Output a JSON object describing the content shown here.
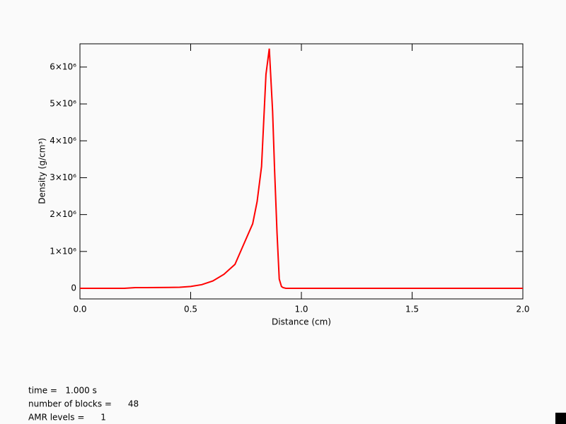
{
  "chart_data": {
    "type": "line",
    "x_label": "Distance (cm)",
    "y_label": "Density (g/cm³)",
    "x": [
      0,
      0.1,
      0.2,
      0.25,
      0.3,
      0.4,
      0.45,
      0.5,
      0.55,
      0.6,
      0.65,
      0.7,
      0.74,
      0.78,
      0.8,
      0.82,
      0.84,
      0.855,
      0.87,
      0.879,
      0.89,
      0.9,
      0.91,
      0.917,
      0.93,
      1.0,
      1.5,
      2.0
    ],
    "values": [
      0,
      0,
      0,
      20000,
      20000,
      25000,
      30000,
      50000,
      100000,
      200000,
      380000,
      650000,
      1200000,
      1750000,
      2350000,
      3300000,
      5800000,
      6500000,
      4800000,
      3200000,
      1500000,
      250000,
      50000,
      20000,
      0,
      0,
      0,
      0
    ],
    "color": "#ff0000",
    "xlim": [
      0,
      2.0
    ],
    "xticks": [
      {
        "value": 0,
        "label": "0.0"
      },
      0.5,
      {
        "value": 1.0,
        "label": "1.0"
      },
      1.5,
      {
        "value": 2.0,
        "label": "2.0"
      }
    ],
    "ylim": [
      -287000,
      6630000
    ],
    "yticks": [
      0,
      {
        "value": 1000000,
        "label": "1×10⁶"
      },
      {
        "value": 2000000,
        "label": "2×10⁶"
      },
      {
        "value": 3000000,
        "label": "3×10⁶"
      },
      {
        "value": 4000000,
        "label": "4×10⁶"
      },
      {
        "value": 5000000,
        "label": "5×10⁶"
      },
      {
        "value": 6000000,
        "label": "6×10⁶"
      }
    ],
    "annotations": [
      "time =   1.000 s",
      "number of blocks =      48",
      "AMR levels =      1"
    ]
  }
}
